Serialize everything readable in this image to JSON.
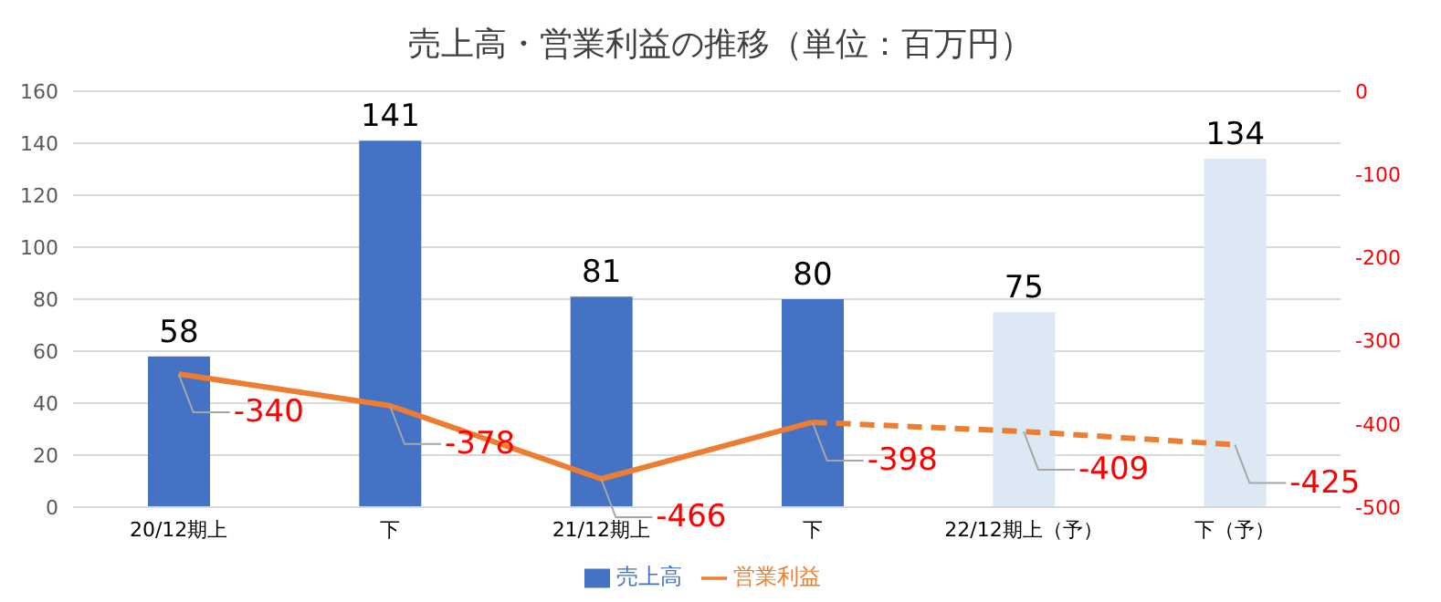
{
  "chart_data": {
    "type": "bar",
    "title": "売上高・営業利益の推移（単位：百万円）",
    "categories": [
      "20/12期上",
      "下",
      "21/12期上",
      "下",
      "22/12期上（予）",
      "下（予）"
    ],
    "series": [
      {
        "name": "売上高",
        "color": "#4472c4",
        "colors": [
          "#4472c4",
          "#4472c4",
          "#4472c4",
          "#4472c4",
          "#dde8f5",
          "#dde8f5"
        ],
        "values": [
          58,
          141,
          81,
          80,
          75,
          134
        ]
      },
      {
        "type": "line",
        "name": "営業利益",
        "color": "#ed7d31",
        "axis": "y2",
        "line_style": "solid",
        "values": [
          -340,
          -378,
          -466,
          -398,
          null,
          null
        ]
      },
      {
        "type": "line",
        "color": "#ed7d31",
        "axis": "y2",
        "line_style": "dashed",
        "values": [
          null,
          null,
          null,
          -398,
          -409,
          -425
        ],
        "value_labels": [
          null,
          null,
          null,
          null,
          "-409",
          "-425"
        ]
      }
    ],
    "ylim": [
      0,
      160
    ],
    "yticks": [
      0,
      20,
      40,
      60,
      80,
      100,
      120,
      140,
      160
    ],
    "y2lim": [
      -500,
      0
    ],
    "y2ticks": [
      0,
      -100,
      -200,
      -300,
      -400,
      -500
    ],
    "grid": "y",
    "legend": "bottom",
    "marker": "none",
    "data_labels": true
  }
}
